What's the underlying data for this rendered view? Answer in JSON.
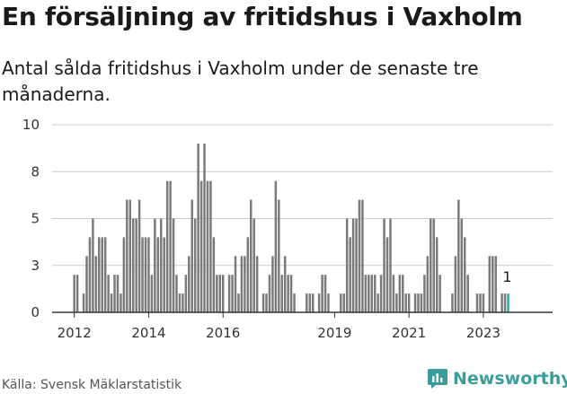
{
  "header": {
    "title": "En försäljning av fritidshus i Vaxholm",
    "subtitle": "Antal sålda fritidshus i Vaxholm under de senaste tre månaderna."
  },
  "footer": {
    "source": "Källa: Svensk Mäklarstatistik",
    "brand": "Newsworthy",
    "brand_icon": "bar-chart-logo-icon"
  },
  "colors": {
    "bar": "#7a797b",
    "highlight": "#3aa39f",
    "axis": "#333333",
    "grid": "#cccccc",
    "brand": "#3b9d9a"
  },
  "chart_data": {
    "type": "bar",
    "title": "En försäljning av fritidshus i Vaxholm",
    "subtitle": "Antal sålda fritidshus i Vaxholm under de senaste tre månaderna.",
    "y_tick_labels": [
      "0",
      "3",
      "5",
      "8",
      "10"
    ],
    "y_tick_values": [
      0,
      2.5,
      5,
      7.5,
      10
    ],
    "ylim": [
      0,
      10
    ],
    "x_tick_labels": [
      "2012",
      "2014",
      "2016",
      "2019",
      "2021",
      "2023"
    ],
    "x_tick_dates": [
      "2012-01",
      "2014-01",
      "2016-01",
      "2019-01",
      "2021-01",
      "2023-01"
    ],
    "xlim": [
      "2011-07",
      "2024-07"
    ],
    "grid": true,
    "legend": "none",
    "bars": [
      {
        "x": "2012-01",
        "y": 2
      },
      {
        "x": "2012-02",
        "y": 2
      },
      {
        "x": "2012-04",
        "y": 1
      },
      {
        "x": "2012-05",
        "y": 3
      },
      {
        "x": "2012-06",
        "y": 4
      },
      {
        "x": "2012-07",
        "y": 5
      },
      {
        "x": "2012-08",
        "y": 3
      },
      {
        "x": "2012-09",
        "y": 4
      },
      {
        "x": "2012-10",
        "y": 4
      },
      {
        "x": "2012-11",
        "y": 4
      },
      {
        "x": "2012-12",
        "y": 2
      },
      {
        "x": "2013-01",
        "y": 1
      },
      {
        "x": "2013-02",
        "y": 2
      },
      {
        "x": "2013-03",
        "y": 2
      },
      {
        "x": "2013-04",
        "y": 1
      },
      {
        "x": "2013-05",
        "y": 4
      },
      {
        "x": "2013-06",
        "y": 6
      },
      {
        "x": "2013-07",
        "y": 6
      },
      {
        "x": "2013-08",
        "y": 5
      },
      {
        "x": "2013-09",
        "y": 5
      },
      {
        "x": "2013-10",
        "y": 6
      },
      {
        "x": "2013-11",
        "y": 4
      },
      {
        "x": "2013-12",
        "y": 4
      },
      {
        "x": "2014-01",
        "y": 4
      },
      {
        "x": "2014-02",
        "y": 2
      },
      {
        "x": "2014-03",
        "y": 5
      },
      {
        "x": "2014-04",
        "y": 4
      },
      {
        "x": "2014-05",
        "y": 5
      },
      {
        "x": "2014-06",
        "y": 4
      },
      {
        "x": "2014-07",
        "y": 7
      },
      {
        "x": "2014-08",
        "y": 7
      },
      {
        "x": "2014-09",
        "y": 5
      },
      {
        "x": "2014-10",
        "y": 2
      },
      {
        "x": "2014-11",
        "y": 1
      },
      {
        "x": "2014-12",
        "y": 1
      },
      {
        "x": "2015-01",
        "y": 2
      },
      {
        "x": "2015-02",
        "y": 3
      },
      {
        "x": "2015-03",
        "y": 6
      },
      {
        "x": "2015-04",
        "y": 5
      },
      {
        "x": "2015-05",
        "y": 9
      },
      {
        "x": "2015-06",
        "y": 7
      },
      {
        "x": "2015-07",
        "y": 9
      },
      {
        "x": "2015-08",
        "y": 7
      },
      {
        "x": "2015-09",
        "y": 7
      },
      {
        "x": "2015-10",
        "y": 4
      },
      {
        "x": "2015-11",
        "y": 2
      },
      {
        "x": "2015-12",
        "y": 2
      },
      {
        "x": "2016-01",
        "y": 2
      },
      {
        "x": "2016-03",
        "y": 2
      },
      {
        "x": "2016-04",
        "y": 2
      },
      {
        "x": "2016-05",
        "y": 3
      },
      {
        "x": "2016-06",
        "y": 1
      },
      {
        "x": "2016-07",
        "y": 3
      },
      {
        "x": "2016-08",
        "y": 3
      },
      {
        "x": "2016-09",
        "y": 4
      },
      {
        "x": "2016-10",
        "y": 6
      },
      {
        "x": "2016-11",
        "y": 5
      },
      {
        "x": "2016-12",
        "y": 3
      },
      {
        "x": "2017-02",
        "y": 1
      },
      {
        "x": "2017-03",
        "y": 1
      },
      {
        "x": "2017-04",
        "y": 2
      },
      {
        "x": "2017-05",
        "y": 3
      },
      {
        "x": "2017-06",
        "y": 7
      },
      {
        "x": "2017-07",
        "y": 6
      },
      {
        "x": "2017-08",
        "y": 2
      },
      {
        "x": "2017-09",
        "y": 3
      },
      {
        "x": "2017-10",
        "y": 2
      },
      {
        "x": "2017-11",
        "y": 2
      },
      {
        "x": "2017-12",
        "y": 1
      },
      {
        "x": "2018-04",
        "y": 1
      },
      {
        "x": "2018-05",
        "y": 1
      },
      {
        "x": "2018-06",
        "y": 1
      },
      {
        "x": "2018-08",
        "y": 1
      },
      {
        "x": "2018-09",
        "y": 2
      },
      {
        "x": "2018-10",
        "y": 2
      },
      {
        "x": "2018-11",
        "y": 1
      },
      {
        "x": "2019-03",
        "y": 1
      },
      {
        "x": "2019-04",
        "y": 1
      },
      {
        "x": "2019-05",
        "y": 5
      },
      {
        "x": "2019-06",
        "y": 4
      },
      {
        "x": "2019-07",
        "y": 5
      },
      {
        "x": "2019-08",
        "y": 5
      },
      {
        "x": "2019-09",
        "y": 6
      },
      {
        "x": "2019-10",
        "y": 6
      },
      {
        "x": "2019-11",
        "y": 2
      },
      {
        "x": "2019-12",
        "y": 2
      },
      {
        "x": "2020-01",
        "y": 2
      },
      {
        "x": "2020-02",
        "y": 2
      },
      {
        "x": "2020-03",
        "y": 1
      },
      {
        "x": "2020-04",
        "y": 2
      },
      {
        "x": "2020-05",
        "y": 5
      },
      {
        "x": "2020-06",
        "y": 4
      },
      {
        "x": "2020-07",
        "y": 5
      },
      {
        "x": "2020-08",
        "y": 2
      },
      {
        "x": "2020-09",
        "y": 1
      },
      {
        "x": "2020-10",
        "y": 2
      },
      {
        "x": "2020-11",
        "y": 2
      },
      {
        "x": "2020-12",
        "y": 1
      },
      {
        "x": "2021-01",
        "y": 1
      },
      {
        "x": "2021-03",
        "y": 1
      },
      {
        "x": "2021-04",
        "y": 1
      },
      {
        "x": "2021-05",
        "y": 1
      },
      {
        "x": "2021-06",
        "y": 2
      },
      {
        "x": "2021-07",
        "y": 3
      },
      {
        "x": "2021-08",
        "y": 5
      },
      {
        "x": "2021-09",
        "y": 5
      },
      {
        "x": "2021-10",
        "y": 4
      },
      {
        "x": "2021-11",
        "y": 2
      },
      {
        "x": "2022-03",
        "y": 1
      },
      {
        "x": "2022-04",
        "y": 3
      },
      {
        "x": "2022-05",
        "y": 6
      },
      {
        "x": "2022-06",
        "y": 5
      },
      {
        "x": "2022-07",
        "y": 4
      },
      {
        "x": "2022-08",
        "y": 2
      },
      {
        "x": "2022-11",
        "y": 1
      },
      {
        "x": "2022-12",
        "y": 1
      },
      {
        "x": "2023-01",
        "y": 1
      },
      {
        "x": "2023-03",
        "y": 3
      },
      {
        "x": "2023-04",
        "y": 3
      },
      {
        "x": "2023-05",
        "y": 3
      },
      {
        "x": "2023-07",
        "y": 1
      },
      {
        "x": "2023-08",
        "y": 1
      },
      {
        "x": "2023-09",
        "y": 1
      }
    ],
    "highlight": {
      "x": "2023-09",
      "y": 1,
      "label": "1"
    }
  }
}
